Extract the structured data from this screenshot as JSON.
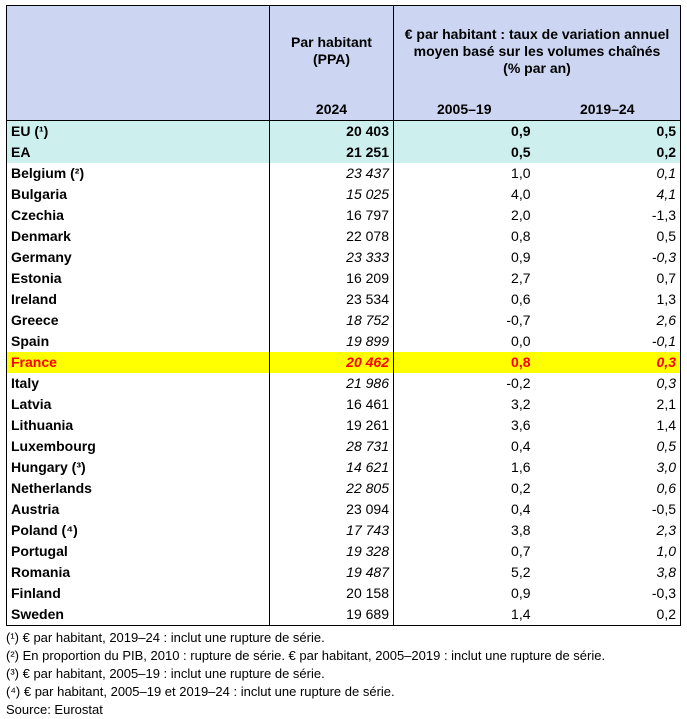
{
  "header": {
    "pps_title": "Par habitant\n(PPA)",
    "growth_title": "€ par habitant : taux de variation annuel moyen basé sur les volumes chaînés\n(% par an)",
    "year_2024": "2024",
    "period_1": "2005–19",
    "period_2": "2019–24"
  },
  "rows": [
    {
      "country": "EU (¹)",
      "pps": "20 403",
      "r1": "0,9",
      "r2": "0,5",
      "style": "agg",
      "pps_it": false,
      "r1_it": false,
      "r2_it": false
    },
    {
      "country": "EA",
      "pps": "21 251",
      "r1": "0,5",
      "r2": "0,2",
      "style": "agg",
      "pps_it": false,
      "r1_it": false,
      "r2_it": false
    },
    {
      "country": "Belgium (²)",
      "pps": "23 437",
      "r1": "1,0",
      "r2": "0,1",
      "style": "",
      "pps_it": true,
      "r1_it": false,
      "r2_it": true
    },
    {
      "country": "Bulgaria",
      "pps": "15 025",
      "r1": "4,0",
      "r2": "4,1",
      "style": "",
      "pps_it": true,
      "r1_it": false,
      "r2_it": true
    },
    {
      "country": "Czechia",
      "pps": "16 797",
      "r1": "2,0",
      "r2": "-1,3",
      "style": "",
      "pps_it": false,
      "r1_it": false,
      "r2_it": false
    },
    {
      "country": "Denmark",
      "pps": "22 078",
      "r1": "0,8",
      "r2": "0,5",
      "style": "",
      "pps_it": false,
      "r1_it": false,
      "r2_it": false
    },
    {
      "country": "Germany",
      "pps": "23 333",
      "r1": "0,9",
      "r2": "-0,3",
      "style": "",
      "pps_it": true,
      "r1_it": false,
      "r2_it": true
    },
    {
      "country": "Estonia",
      "pps": "16 209",
      "r1": "2,7",
      "r2": "0,7",
      "style": "",
      "pps_it": false,
      "r1_it": false,
      "r2_it": false
    },
    {
      "country": "Ireland",
      "pps": "23 534",
      "r1": "0,6",
      "r2": "1,3",
      "style": "",
      "pps_it": false,
      "r1_it": false,
      "r2_it": false
    },
    {
      "country": "Greece",
      "pps": "18 752",
      "r1": "-0,7",
      "r2": "2,6",
      "style": "",
      "pps_it": true,
      "r1_it": false,
      "r2_it": true
    },
    {
      "country": "Spain",
      "pps": "19 899",
      "r1": "0,0",
      "r2": "-0,1",
      "style": "",
      "pps_it": true,
      "r1_it": false,
      "r2_it": true
    },
    {
      "country": "France",
      "pps": "20 462",
      "r1": "0,8",
      "r2": "0,3",
      "style": "hl",
      "pps_it": true,
      "r1_it": false,
      "r2_it": true
    },
    {
      "country": "Italy",
      "pps": "21 986",
      "r1": "-0,2",
      "r2": "0,3",
      "style": "",
      "pps_it": true,
      "r1_it": false,
      "r2_it": true
    },
    {
      "country": "Latvia",
      "pps": "16 461",
      "r1": "3,2",
      "r2": "2,1",
      "style": "",
      "pps_it": false,
      "r1_it": false,
      "r2_it": false
    },
    {
      "country": "Lithuania",
      "pps": "19 261",
      "r1": "3,6",
      "r2": "1,4",
      "style": "",
      "pps_it": false,
      "r1_it": false,
      "r2_it": false
    },
    {
      "country": "Luxembourg",
      "pps": "28 731",
      "r1": "0,4",
      "r2": "0,5",
      "style": "",
      "pps_it": true,
      "r1_it": false,
      "r2_it": true
    },
    {
      "country": "Hungary (³)",
      "pps": "14 621",
      "r1": "1,6",
      "r2": "3,0",
      "style": "",
      "pps_it": true,
      "r1_it": false,
      "r2_it": true
    },
    {
      "country": "Netherlands",
      "pps": "22 805",
      "r1": "0,2",
      "r2": "0,6",
      "style": "",
      "pps_it": true,
      "r1_it": false,
      "r2_it": true
    },
    {
      "country": "Austria",
      "pps": "23 094",
      "r1": "0,4",
      "r2": "-0,5",
      "style": "",
      "pps_it": false,
      "r1_it": false,
      "r2_it": false
    },
    {
      "country": "Poland (⁴)",
      "pps": "17 743",
      "r1": "3,8",
      "r2": "2,3",
      "style": "",
      "pps_it": true,
      "r1_it": false,
      "r2_it": true
    },
    {
      "country": "Portugal",
      "pps": "19 328",
      "r1": "0,7",
      "r2": "1,0",
      "style": "",
      "pps_it": true,
      "r1_it": false,
      "r2_it": true
    },
    {
      "country": "Romania",
      "pps": "19 487",
      "r1": "5,2",
      "r2": "3,8",
      "style": "",
      "pps_it": true,
      "r1_it": false,
      "r2_it": true
    },
    {
      "country": "Finland",
      "pps": "20 158",
      "r1": "0,9",
      "r2": "-0,3",
      "style": "",
      "pps_it": false,
      "r1_it": false,
      "r2_it": false
    },
    {
      "country": "Sweden",
      "pps": "19 689",
      "r1": "1,4",
      "r2": "0,2",
      "style": "",
      "pps_it": false,
      "r1_it": false,
      "r2_it": false
    }
  ],
  "notes": [
    "(¹) € par habitant, 2019–24 : inclut une rupture de série.",
    "(²) En proportion du PIB, 2010 : rupture de série. € par habitant, 2005–2019 : inclut une rupture de série.",
    "(³) € par habitant, 2005–19 : inclut une rupture de série.",
    "(⁴) € par habitant, 2005–19 et 2019–24 : inclut une rupture de série."
  ],
  "source": "Source: Eurostat",
  "colors": {
    "header_bg": "#ccd6f2",
    "aggregate_bg": "#cdf0ef",
    "highlight_bg": "#ffff00",
    "highlight_text": "#ff0000"
  }
}
